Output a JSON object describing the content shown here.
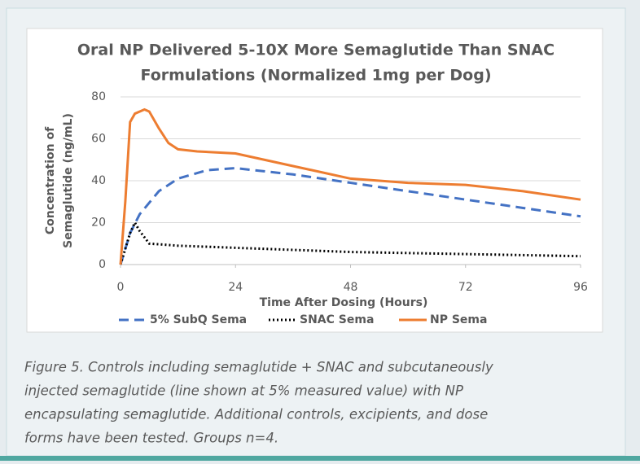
{
  "chart_data": {
    "type": "line",
    "title": [
      "Oral NP Delivered 5-10X More Semaglutide Than SNAC",
      "Formulations (Normalized 1mg per Dog)"
    ],
    "xlabel": "Time After Dosing (Hours)",
    "ylabel": [
      "Concentration of",
      "Semaglutide (ng/mL)"
    ],
    "xlim": [
      0,
      96
    ],
    "xticks": [
      0,
      24,
      48,
      72,
      96
    ],
    "ylim": [
      0,
      80
    ],
    "yticks": [
      0,
      20,
      40,
      60,
      80
    ],
    "grid": true,
    "legend": "bottom",
    "series": [
      {
        "name": "5% SubQ Sema",
        "color": "#4472c4",
        "dash": "dashed",
        "x": [
          0,
          2,
          4,
          8,
          12,
          18,
          24,
          36,
          48,
          60,
          72,
          84,
          96
        ],
        "values": [
          0,
          15,
          24,
          35,
          41,
          45,
          46,
          43,
          39,
          35,
          31,
          27,
          23
        ]
      },
      {
        "name": "SNAC Sema",
        "color": "#000000",
        "dash": "dotted",
        "x": [
          0,
          2,
          3,
          4,
          6,
          12,
          24,
          48,
          72,
          96
        ],
        "values": [
          0,
          15,
          20,
          16,
          10,
          9,
          8,
          6,
          5,
          4
        ]
      },
      {
        "name": "NP Sema",
        "color": "#ed7d31",
        "dash": "solid",
        "x": [
          0,
          1,
          2,
          3,
          5,
          6,
          8,
          10,
          12,
          16,
          24,
          36,
          48,
          60,
          72,
          84,
          96
        ],
        "values": [
          0,
          30,
          68,
          72,
          74,
          73,
          65,
          58,
          55,
          54,
          53,
          47,
          41,
          39,
          38,
          35,
          31
        ]
      }
    ]
  },
  "caption": {
    "lines": [
      "Figure 5.  Controls including semaglutide + SNAC and subcutaneously",
      "injected semaglutide (line shown at 5% measured value) with NP",
      "encapsulating semaglutide.  Additional controls, excipients, and dose",
      "forms have been tested.  Groups n=4."
    ]
  }
}
